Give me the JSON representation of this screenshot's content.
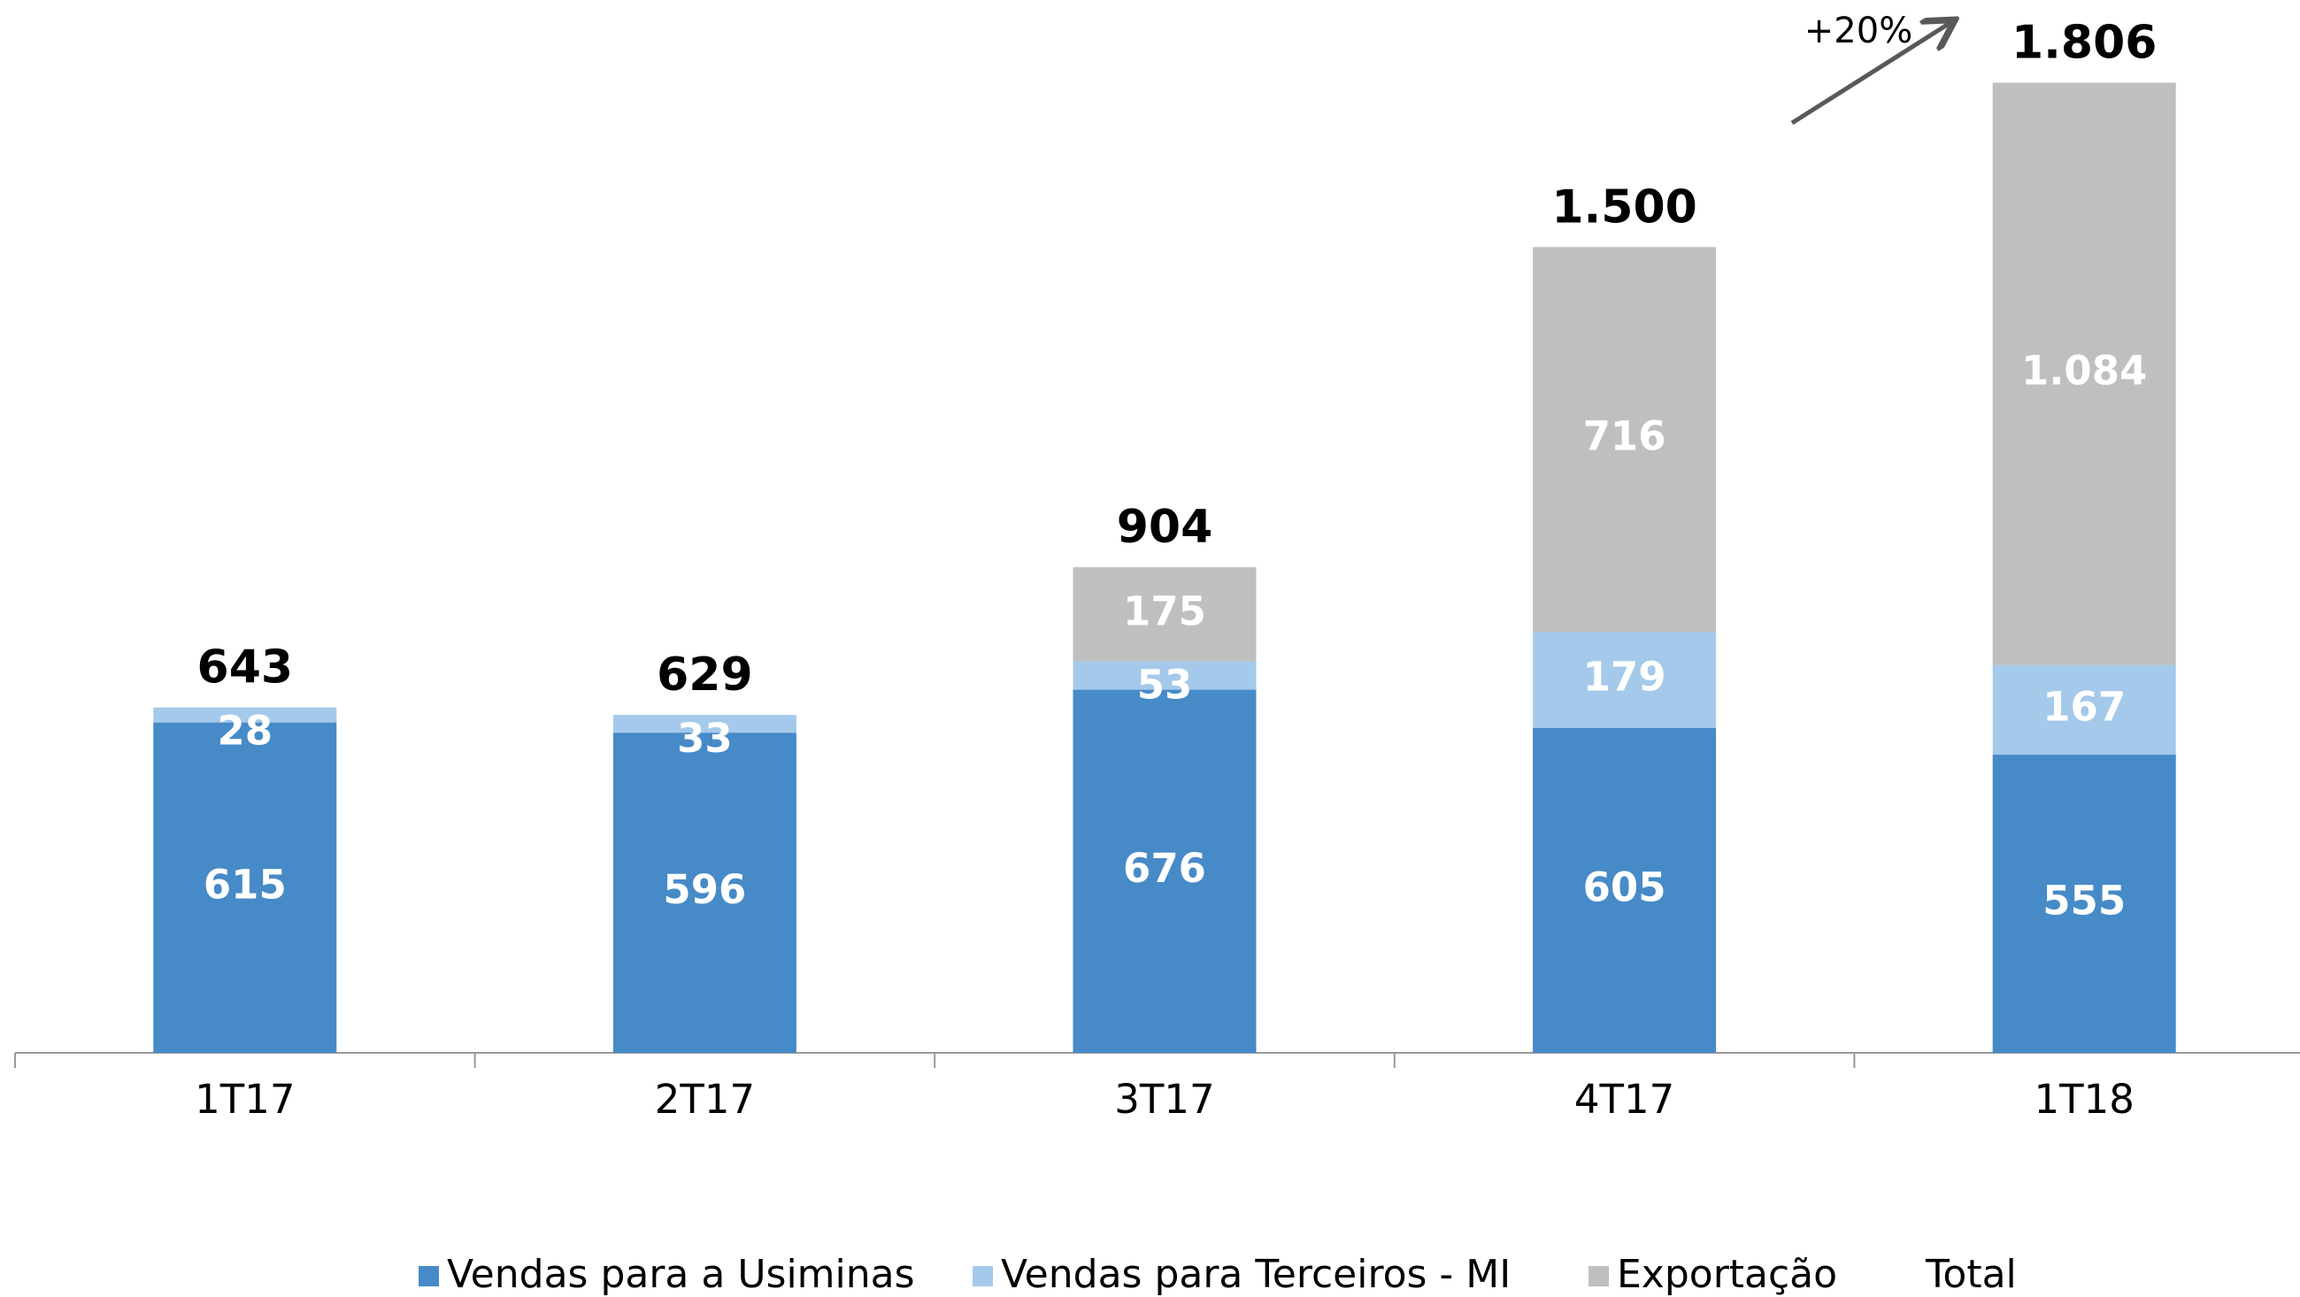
{
  "chart_data": {
    "type": "stacked_bar",
    "categories": [
      "1T17",
      "2T17",
      "3T17",
      "4T17",
      "1T18"
    ],
    "series": [
      {
        "name": "Vendas para a Usiminas",
        "color": "#468ac8",
        "values": [
          615,
          596,
          676,
          605,
          555
        ]
      },
      {
        "name": "Vendas para Terceiros - MI",
        "color": "#a5c9ea",
        "values": [
          28,
          33,
          53,
          179,
          167
        ]
      },
      {
        "name": "Exportação",
        "color": "#bfbfbf",
        "values": [
          null,
          null,
          175,
          716,
          1084
        ],
        "value_labels": [
          null,
          null,
          "175",
          "716",
          "1.084"
        ]
      }
    ],
    "totals": {
      "name": "Total",
      "values": [
        643,
        629,
        904,
        1500,
        1806
      ],
      "value_labels": [
        "643",
        "629",
        "904",
        "1.500",
        "1.806"
      ]
    },
    "annotation": "+20%",
    "ylim": [
      0,
      1960
    ],
    "legend": "bottom"
  }
}
